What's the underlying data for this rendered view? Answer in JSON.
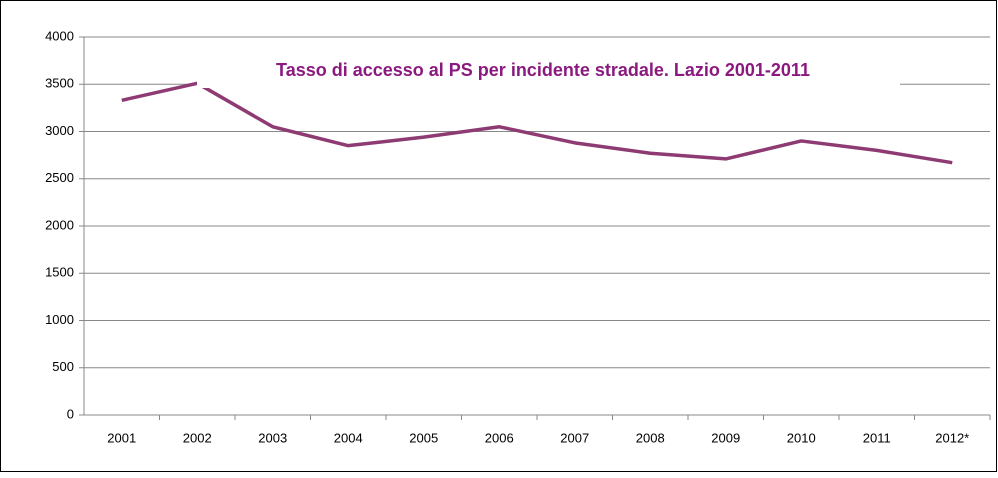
{
  "chart_data": {
    "type": "line",
    "title": "Tasso di accesso al PS per incidente stradale. Lazio 2001-2011",
    "categories": [
      "2001",
      "2002",
      "2003",
      "2004",
      "2005",
      "2006",
      "2007",
      "2008",
      "2009",
      "2010",
      "2011",
      "2012*"
    ],
    "series": [
      {
        "name": null,
        "color": "#8e3b73",
        "values": [
          3330,
          3510,
          3050,
          2850,
          2940,
          3050,
          2880,
          2770,
          2710,
          2900,
          2800,
          2670
        ]
      }
    ],
    "ylim": [
      0,
      4000
    ],
    "yticks": [
      0,
      500,
      1000,
      1500,
      2000,
      2500,
      3000,
      3500,
      4000
    ],
    "grid": true
  }
}
